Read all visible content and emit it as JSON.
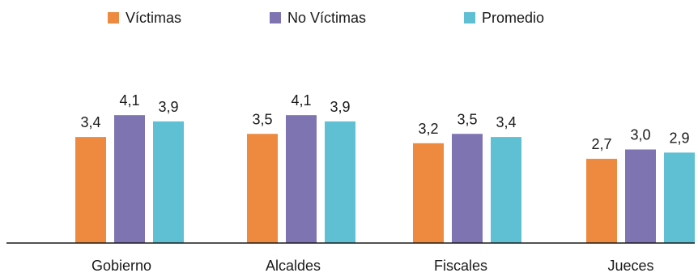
{
  "chart_data": {
    "type": "bar",
    "categories": [
      "Gobierno",
      "Alcaldes",
      "Fiscales",
      "Jueces"
    ],
    "series": [
      {
        "name": "Víctimas",
        "color": "#ed8a3f",
        "values": [
          3.4,
          3.5,
          3.2,
          2.7
        ],
        "labels": [
          "3,4",
          "3,5",
          "3,2",
          "2,7"
        ]
      },
      {
        "name": "No Víctimas",
        "color": "#7f74b2",
        "values": [
          4.1,
          4.1,
          3.5,
          3.0
        ],
        "labels": [
          "4,1",
          "4,1",
          "3,5",
          "3,0"
        ]
      },
      {
        "name": "Promedio",
        "color": "#5fc0d3",
        "values": [
          3.9,
          3.9,
          3.4,
          2.9
        ],
        "labels": [
          "3,9",
          "3,9",
          "3,4",
          "2,9"
        ]
      }
    ],
    "ylim": [
      0,
      5
    ],
    "grid": false,
    "legend_position": "top"
  }
}
